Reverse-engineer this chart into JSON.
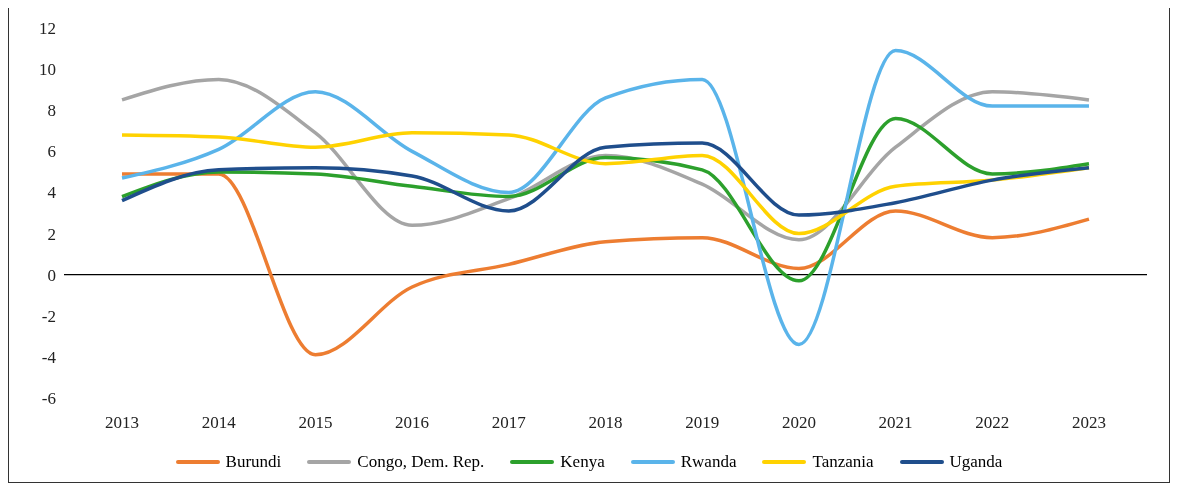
{
  "chart_data": {
    "type": "line",
    "categories": [
      "2013",
      "2014",
      "2015",
      "2016",
      "2017",
      "2018",
      "2019",
      "2020",
      "2021",
      "2022",
      "2023"
    ],
    "series": [
      {
        "name": "Burundi",
        "color": "#ed7d31",
        "values": [
          4.9,
          4.9,
          -3.9,
          -0.6,
          0.5,
          1.6,
          1.8,
          0.3,
          3.1,
          1.8,
          2.7
        ]
      },
      {
        "name": "Congo, Dem. Rep.",
        "color": "#a5a5a5",
        "values": [
          8.5,
          9.5,
          6.9,
          2.4,
          3.7,
          5.8,
          4.4,
          1.7,
          6.2,
          8.9,
          8.5
        ]
      },
      {
        "name": "Kenya",
        "color": "#2ca02c",
        "values": [
          3.8,
          5.0,
          4.9,
          4.3,
          3.8,
          5.7,
          5.1,
          -0.3,
          7.6,
          4.9,
          5.4
        ]
      },
      {
        "name": "Rwanda",
        "color": "#5ab4ea",
        "values": [
          4.7,
          6.1,
          8.9,
          6.0,
          4.0,
          8.6,
          9.5,
          -3.4,
          10.9,
          8.2,
          8.2
        ]
      },
      {
        "name": "Tanzania",
        "color": "#ffd200",
        "values": [
          6.8,
          6.7,
          6.2,
          6.9,
          6.8,
          5.4,
          5.8,
          2.0,
          4.3,
          4.6,
          5.2
        ]
      },
      {
        "name": "Uganda",
        "color": "#1f4e8c",
        "values": [
          3.6,
          5.1,
          5.2,
          4.8,
          3.1,
          6.2,
          6.4,
          2.9,
          3.5,
          4.6,
          5.2
        ]
      }
    ],
    "ylim": [
      -6,
      12
    ],
    "yticks": [
      -6,
      -4,
      -2,
      0,
      2,
      4,
      6,
      8,
      10,
      12
    ],
    "ref_lines": [
      {
        "axis": "y",
        "value": 0,
        "color": "#000000"
      }
    ],
    "grid": false,
    "legend": "bottom",
    "marker": "none",
    "line_style": "solid"
  }
}
